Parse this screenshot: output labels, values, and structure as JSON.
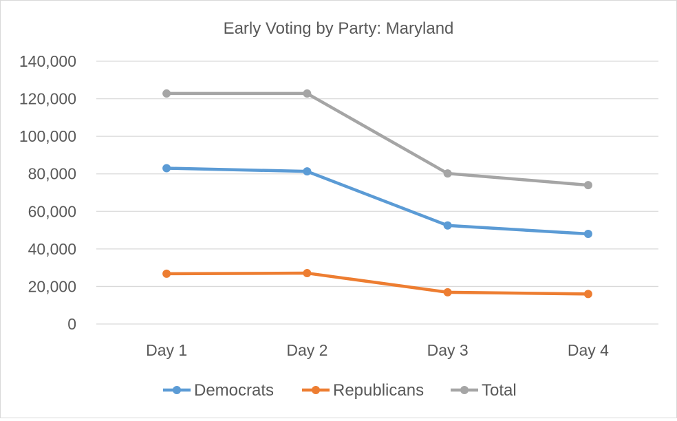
{
  "chart_data": {
    "type": "line",
    "title": "Early Voting by Party: Maryland",
    "xlabel": "",
    "ylabel": "",
    "categories": [
      "Day 1",
      "Day 2",
      "Day 3",
      "Day 4"
    ],
    "ylim": [
      0,
      140000
    ],
    "y_ticks": [
      0,
      20000,
      40000,
      60000,
      80000,
      100000,
      120000,
      140000
    ],
    "y_tick_labels": [
      "0",
      "20,000",
      "40,000",
      "60,000",
      "80,000",
      "100,000",
      "120,000",
      "140,000"
    ],
    "grid": true,
    "legend_position": "bottom",
    "series": [
      {
        "name": "Democrats",
        "values": [
          83000,
          81300,
          52500,
          48000
        ],
        "color": "#5b9bd5"
      },
      {
        "name": "Republicans",
        "values": [
          26800,
          27100,
          16900,
          16000
        ],
        "color": "#ed7d31"
      },
      {
        "name": "Total",
        "values": [
          122800,
          122800,
          80200,
          74000
        ],
        "color": "#a5a5a5"
      }
    ]
  }
}
